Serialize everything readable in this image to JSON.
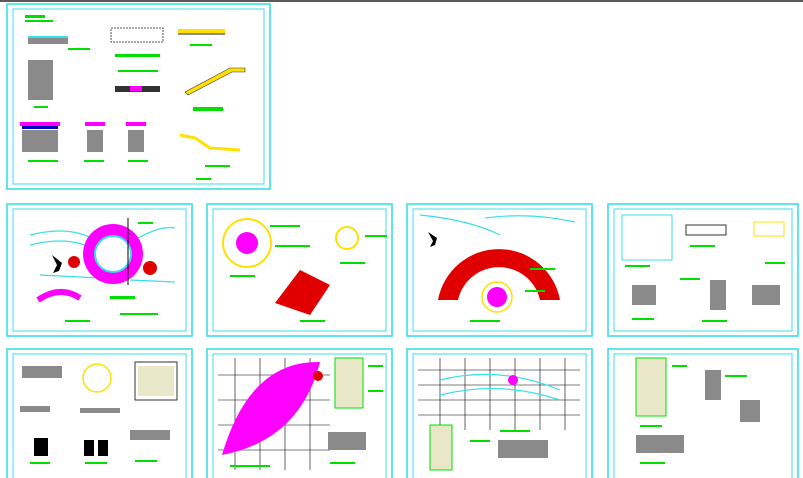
{
  "view": {
    "background": "#ffffff",
    "topbar_color": "#5a5a5a"
  },
  "colors": {
    "sheet_border": "#38e0e8",
    "annotation": "#00e000",
    "paving_magenta": "#ff00ff",
    "paving_red": "#e00000",
    "layer_yellow": "#ffe000",
    "grid_black": "#000000"
  },
  "sheets": [
    {
      "name": "construction-details-sheet"
    },
    {
      "name": "circular-plaza-plan-sheet"
    },
    {
      "name": "circle-detail-sheet"
    },
    {
      "name": "fan-paving-plan-sheet"
    },
    {
      "name": "hexagon-paving-sheet"
    },
    {
      "name": "planter-details-sheet"
    },
    {
      "name": "leaf-paving-plan-sheet"
    },
    {
      "name": "grid-plan-sheet"
    },
    {
      "name": "wall-elevation-sheet"
    }
  ]
}
